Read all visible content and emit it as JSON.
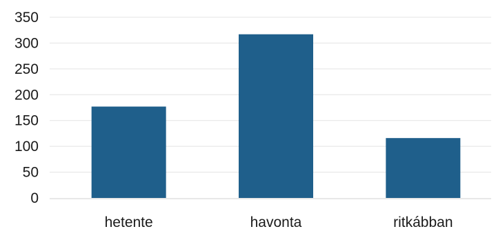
{
  "chart_data": {
    "type": "bar",
    "categories": [
      "hetente",
      "havonta",
      "ritkábban"
    ],
    "values": [
      177,
      317,
      116
    ],
    "ylim": [
      0,
      350
    ],
    "yticks": [
      0,
      50,
      100,
      150,
      200,
      250,
      300,
      350
    ],
    "ytick_labels": [
      "0",
      "50",
      "100",
      "150",
      "200",
      "250",
      "300",
      "350"
    ],
    "grid": true,
    "legend": "none",
    "bar_color": "#1f5f8b",
    "grid_color": "#e3e3e3",
    "axis_color": "#d0d0d0"
  }
}
